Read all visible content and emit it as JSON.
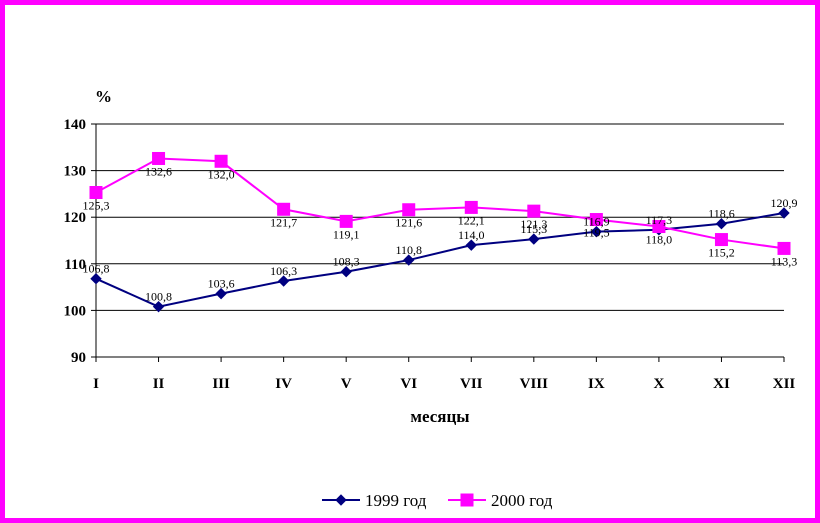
{
  "chart_data": {
    "type": "line",
    "unit_label": "%",
    "xlabel": "месяцы",
    "ylabel": "",
    "ylim": [
      90,
      140
    ],
    "yticks": [
      90,
      100,
      110,
      120,
      130,
      140
    ],
    "grid": true,
    "legend_position": "bottom",
    "categories": [
      "I",
      "II",
      "III",
      "IV",
      "V",
      "VI",
      "VII",
      "VIII",
      "IX",
      "X",
      "XI",
      "XII"
    ],
    "series": [
      {
        "name": "1999 год",
        "color": "#000080",
        "marker": "diamond",
        "values": [
          106.8,
          100.8,
          103.6,
          106.3,
          108.3,
          110.8,
          114.0,
          115.3,
          116.9,
          117.3,
          118.6,
          120.9
        ],
        "labels": [
          "106,8",
          "100,8",
          "103,6",
          "106,3",
          "108,3",
          "110,8",
          "114,0",
          "115,3",
          "116,9",
          "117,3",
          "118,6",
          "120,9"
        ]
      },
      {
        "name": "2000 год",
        "color": "#ff00ff",
        "marker": "square",
        "values": [
          125.3,
          132.6,
          132.0,
          121.7,
          119.1,
          121.6,
          122.1,
          121.3,
          119.5,
          118.0,
          115.2,
          113.3
        ],
        "labels": [
          "125,3",
          "132,6",
          "132,0",
          "121,7",
          "119,1",
          "121,6",
          "122,1",
          "121,3",
          "119,5",
          "118,0",
          "115,2",
          "113,3"
        ]
      }
    ]
  }
}
